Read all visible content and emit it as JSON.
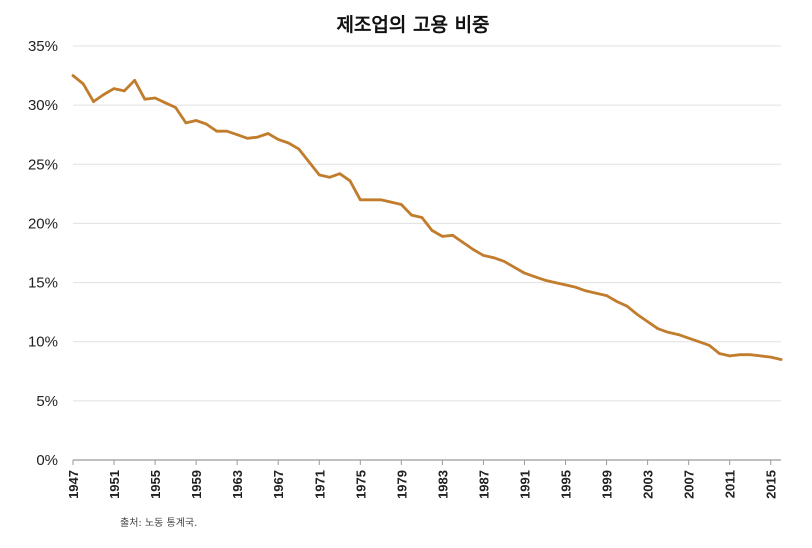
{
  "chart_data": {
    "type": "line",
    "title": "제조업의 고용 비중",
    "source": "출처: 노동 통계국.",
    "xlabel": "",
    "ylabel": "",
    "xlim": [
      1947,
      2016
    ],
    "ylim": [
      0,
      35
    ],
    "y_ticks": [
      "0%",
      "5%",
      "10%",
      "15%",
      "20%",
      "25%",
      "30%",
      "35%"
    ],
    "x_ticks": [
      "1947",
      "1951",
      "1955",
      "1959",
      "1963",
      "1967",
      "1971",
      "1975",
      "1979",
      "1983",
      "1987",
      "1991",
      "1995",
      "1999",
      "2003",
      "2007",
      "2011",
      "2015"
    ],
    "color": "#c17c2c",
    "grid": true,
    "series": [
      {
        "name": "제조업의 고용 비중",
        "x": [
          1947,
          1948,
          1949,
          1950,
          1951,
          1952,
          1953,
          1954,
          1955,
          1956,
          1957,
          1958,
          1959,
          1960,
          1961,
          1962,
          1963,
          1964,
          1965,
          1966,
          1967,
          1968,
          1969,
          1970,
          1971,
          1972,
          1973,
          1974,
          1975,
          1976,
          1977,
          1978,
          1979,
          1980,
          1981,
          1982,
          1983,
          1984,
          1985,
          1986,
          1987,
          1988,
          1989,
          1990,
          1991,
          1992,
          1993,
          1994,
          1995,
          1996,
          1997,
          1998,
          1999,
          2000,
          2001,
          2002,
          2003,
          2004,
          2005,
          2006,
          2007,
          2008,
          2009,
          2010,
          2011,
          2012,
          2013,
          2014,
          2015,
          2016
        ],
        "values": [
          32.5,
          31.8,
          30.3,
          30.9,
          31.4,
          31.2,
          32.1,
          30.5,
          30.6,
          30.2,
          29.8,
          28.5,
          28.7,
          28.4,
          27.8,
          27.8,
          27.5,
          27.2,
          27.3,
          27.6,
          27.1,
          26.8,
          26.3,
          25.2,
          24.1,
          23.9,
          24.2,
          23.6,
          22.0,
          22.0,
          22.0,
          21.8,
          21.6,
          20.7,
          20.5,
          19.4,
          18.9,
          19.0,
          18.4,
          17.8,
          17.3,
          17.1,
          16.8,
          16.3,
          15.8,
          15.5,
          15.2,
          15.0,
          14.8,
          14.6,
          14.3,
          14.1,
          13.9,
          13.4,
          13.0,
          12.3,
          11.7,
          11.1,
          10.8,
          10.6,
          10.3,
          10.0,
          9.7,
          9.0,
          8.8,
          8.9,
          8.9,
          8.8,
          8.7,
          8.5
        ]
      }
    ]
  }
}
